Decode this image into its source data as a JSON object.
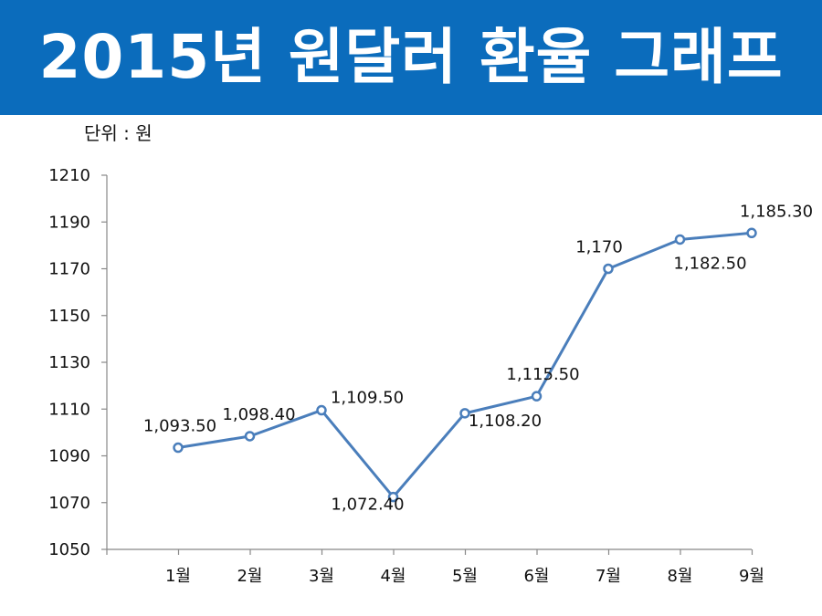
{
  "header": {
    "title": "2015년 원달러 환율 그래프"
  },
  "unit_label": "단위 : 원",
  "colors": {
    "banner": "#0b6cbc",
    "line": "#4a7ebb",
    "axis": "#888888"
  },
  "chart_data": {
    "type": "line",
    "title": "2015년 원달러 환율 그래프",
    "xlabel": "",
    "ylabel": "",
    "categories": [
      "1월",
      "2월",
      "3월",
      "4월",
      "5월",
      "6월",
      "7월",
      "8월",
      "9월"
    ],
    "values": [
      1093.5,
      1098.4,
      1109.5,
      1072.4,
      1108.2,
      1115.5,
      1170,
      1182.5,
      1185.3
    ],
    "data_labels": [
      "1,093.50",
      "1,098.40",
      "1,109.50",
      "1,072.40",
      "1,108.20",
      "1,115.50",
      "1,170",
      "1,182.50",
      "1,185.30"
    ],
    "y_ticks": [
      1050,
      1070,
      1090,
      1110,
      1130,
      1150,
      1170,
      1190,
      1210
    ],
    "ylim": [
      1050,
      1210
    ],
    "grid": false,
    "legend": "none",
    "markers": "hollow-circle"
  }
}
